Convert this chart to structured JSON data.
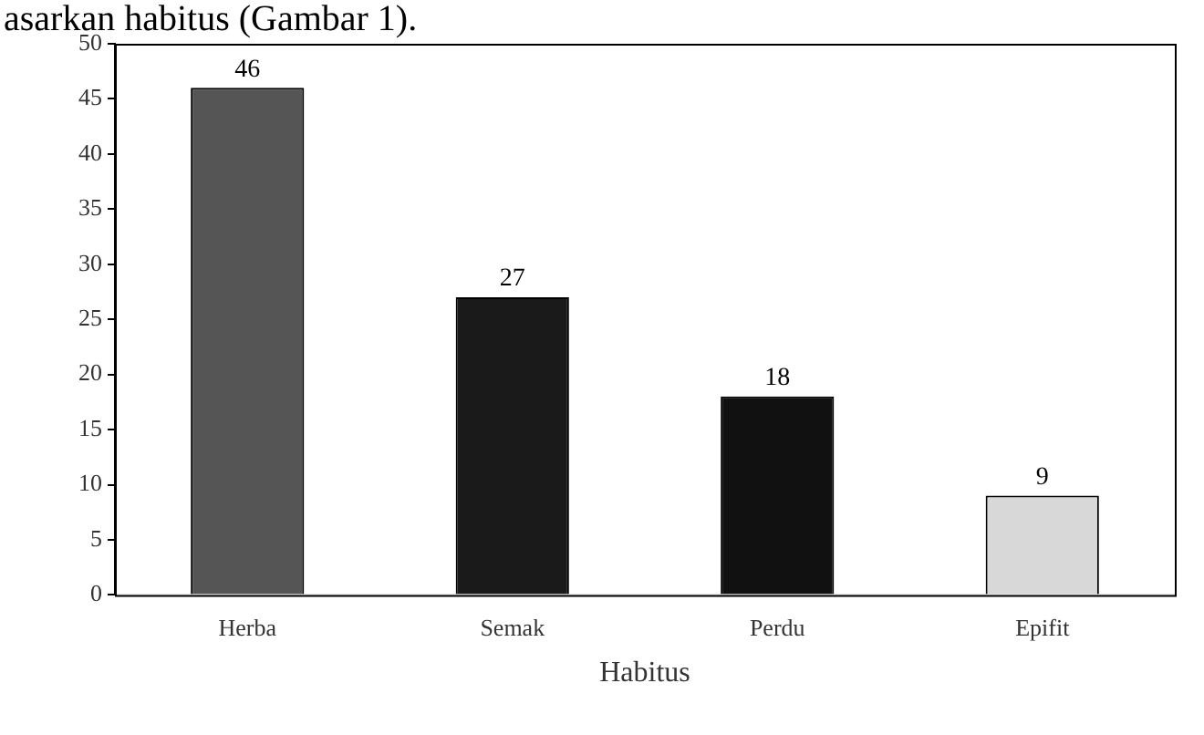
{
  "chart_data": {
    "type": "bar",
    "xlabel": "Habitus",
    "categories": [
      "Herba",
      "Semak",
      "Perdu",
      "Epifit"
    ],
    "values": [
      46,
      27,
      18,
      9
    ],
    "colors": [
      "#555555",
      "#1a1a1a",
      "#111111",
      "#d8d8d8"
    ],
    "ylim": [
      0,
      50
    ],
    "yticks": [
      0,
      5,
      10,
      15,
      20,
      25,
      30,
      35,
      40,
      45,
      50
    ],
    "data_labels": true,
    "grid": false,
    "legend": false,
    "annotations": [
      "asarkan habitus (Gambar 1)."
    ]
  }
}
